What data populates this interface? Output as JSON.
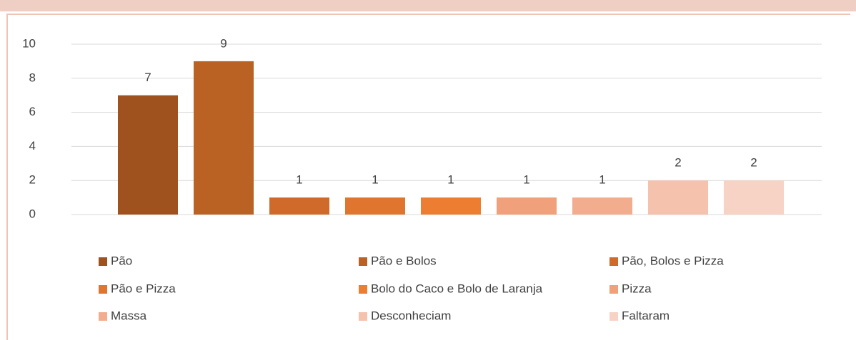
{
  "chart_data": {
    "type": "bar",
    "series": [
      {
        "name": "Pão",
        "color": "#a0521e",
        "values": [
          7
        ]
      },
      {
        "name": "Pão e Bolos",
        "color": "#ba6124",
        "values": [
          9
        ]
      },
      {
        "name": "Pão, Bolos e Pizza",
        "color": "#d06a2a",
        "values": [
          1
        ]
      },
      {
        "name": "Pão e Pizza",
        "color": "#e07530",
        "values": [
          1
        ]
      },
      {
        "name": "Bolo do Caco e Bolo de Laranja",
        "color": "#ed7d31",
        "values": [
          1
        ]
      },
      {
        "name": "Pizza",
        "color": "#f0a07a",
        "values": [
          1
        ]
      },
      {
        "name": "Massa",
        "color": "#f2ad8f",
        "values": [
          1
        ]
      },
      {
        "name": "Desconheciam",
        "color": "#f5c2ae",
        "values": [
          2
        ]
      },
      {
        "name": "Faltaram",
        "color": "#f7d3c6",
        "values": [
          2
        ]
      }
    ],
    "ylim": [
      0,
      10
    ],
    "yticks": [
      0,
      2,
      4,
      6,
      8,
      10
    ],
    "grid": true,
    "legend": "bottom"
  }
}
